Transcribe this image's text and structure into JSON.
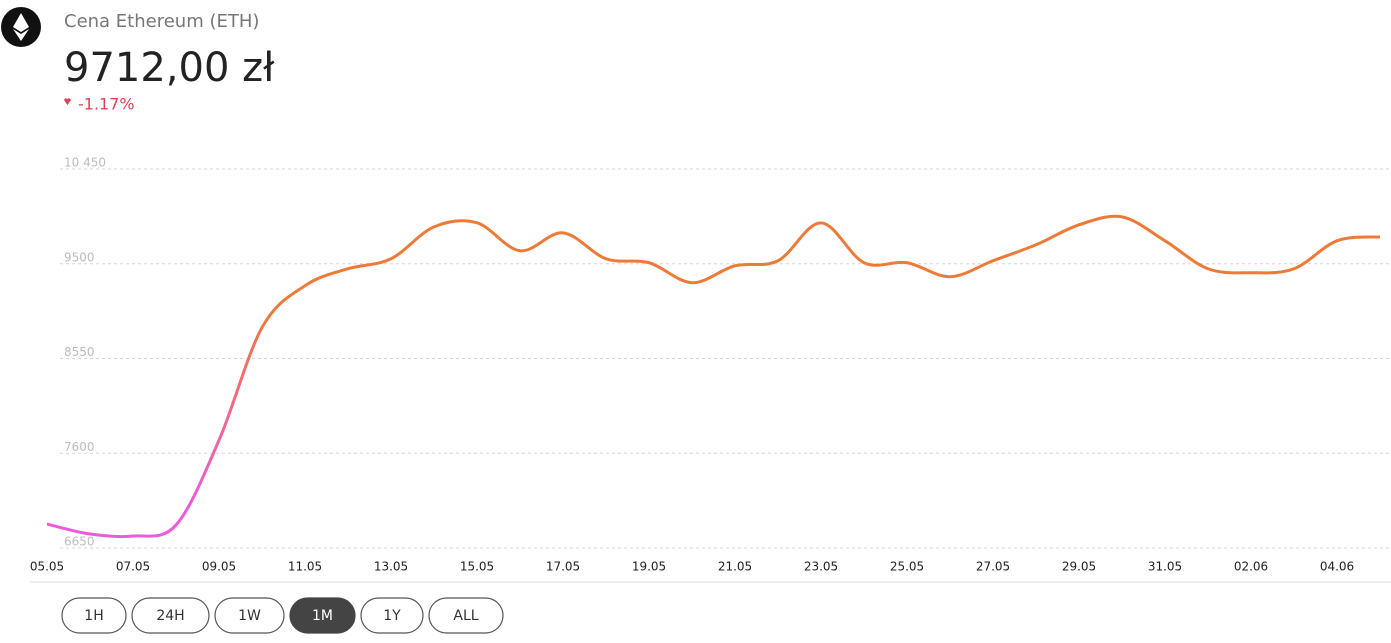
{
  "header": {
    "title": "Cena Ethereum (ETH)",
    "price": "9712,00 zł",
    "change": "-1.17%"
  },
  "chart_data": {
    "type": "line",
    "categories": [
      "05.05",
      null,
      "07.05",
      null,
      "09.05",
      null,
      "11.05",
      null,
      "13.05",
      null,
      "15.05",
      null,
      "17.05",
      null,
      "19.05",
      null,
      "21.05",
      null,
      "23.05",
      null,
      "25.05",
      null,
      "27.05",
      null,
      "29.05",
      null,
      "31.05",
      null,
      "02.06",
      null,
      "04.06",
      null
    ],
    "series": [
      {
        "name": "ETH",
        "color": "#ee7a38",
        "start_color": "#ec5bdc",
        "values": [
          6890,
          6790,
          6770,
          6880,
          7730,
          8860,
          9280,
          9450,
          9550,
          9870,
          9910,
          9630,
          9810,
          9550,
          9510,
          9310,
          9480,
          9530,
          9910,
          9510,
          9510,
          9370,
          9530,
          9690,
          9890,
          9970,
          9730,
          9450,
          9410,
          9450,
          9730,
          9770
        ]
      }
    ],
    "ylim": [
      6650,
      10450
    ],
    "yticks": [
      6650,
      7600,
      8550,
      9500,
      {
        "value": 10450,
        "label": "10 450"
      }
    ],
    "grid": true
  },
  "controls": {
    "ranges": [
      "1H",
      "24H",
      "1W",
      "1M",
      "1Y",
      "ALL"
    ],
    "active": 3
  }
}
